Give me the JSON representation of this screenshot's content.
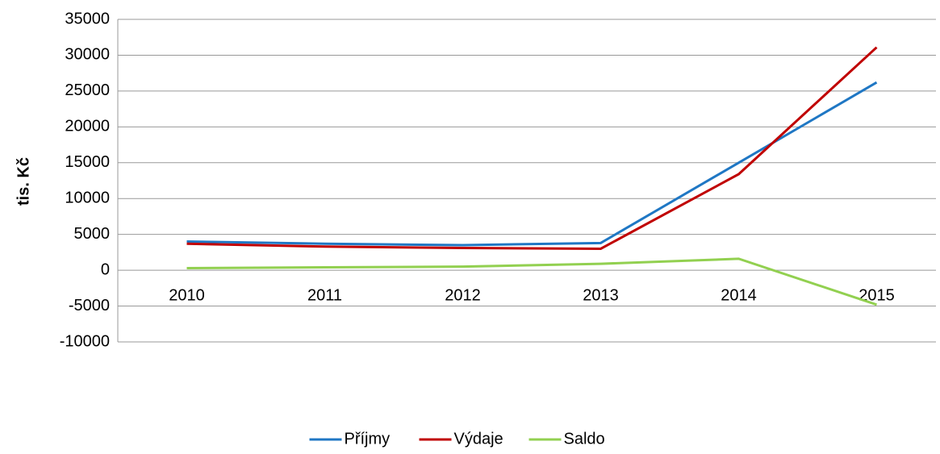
{
  "chart_data": {
    "type": "line",
    "y_label": "tis. Kč",
    "categories": [
      "2010",
      "2011",
      "2012",
      "2013",
      "2014",
      "2015"
    ],
    "series": [
      {
        "name": "Příjmy",
        "color": "#1f77c4",
        "values": [
          4000,
          3700,
          3500,
          3800,
          15000,
          26200
        ]
      },
      {
        "name": "Výdaje",
        "color": "#c00000",
        "values": [
          3700,
          3300,
          3100,
          3000,
          13400,
          31100
        ]
      },
      {
        "name": "Saldo",
        "color": "#92d050",
        "values": [
          300,
          400,
          500,
          900,
          1600,
          -4800
        ]
      }
    ],
    "ylim": [
      -10000,
      35000
    ],
    "yticks": [
      -10000,
      -5000,
      0,
      5000,
      10000,
      15000,
      20000,
      25000,
      30000,
      35000
    ],
    "grid": true,
    "legend": "bottom"
  }
}
